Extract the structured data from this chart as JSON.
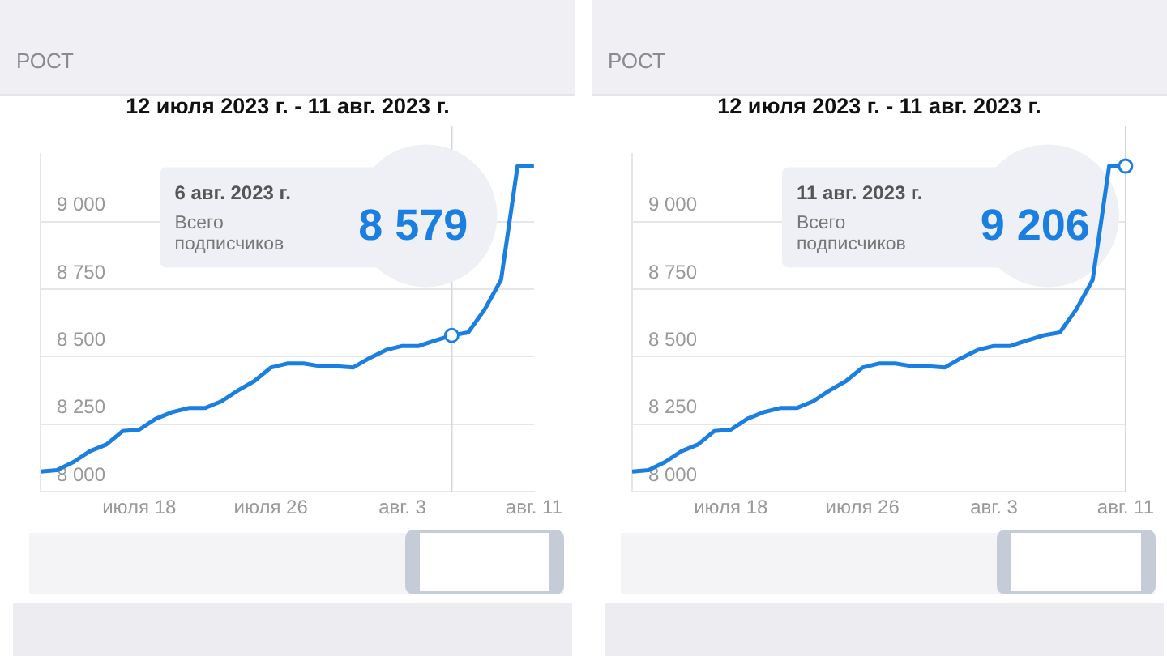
{
  "chart_data": [
    {
      "type": "line",
      "title": "РОСТ",
      "subtitle": "12 июля 2023 г. - 11 авг. 2023 г.",
      "x": [
        "2023-07-12",
        "2023-07-13",
        "2023-07-14",
        "2023-07-15",
        "2023-07-16",
        "2023-07-17",
        "2023-07-18",
        "2023-07-19",
        "2023-07-20",
        "2023-07-21",
        "2023-07-22",
        "2023-07-23",
        "2023-07-24",
        "2023-07-25",
        "2023-07-26",
        "2023-07-27",
        "2023-07-28",
        "2023-07-29",
        "2023-07-30",
        "2023-07-31",
        "2023-08-01",
        "2023-08-02",
        "2023-08-03",
        "2023-08-04",
        "2023-08-05",
        "2023-08-06",
        "2023-08-07",
        "2023-08-08",
        "2023-08-09",
        "2023-08-10",
        "2023-08-11"
      ],
      "series": [
        {
          "color": "#1a7fe0",
          "values": [
            8075,
            8080,
            8110,
            8150,
            8175,
            8225,
            8230,
            8270,
            8295,
            8310,
            8310,
            8335,
            8375,
            8410,
            8460,
            8475,
            8475,
            8465,
            8465,
            8460,
            8495,
            8525,
            8540,
            8540,
            8560,
            8579,
            8590,
            8675,
            8785,
            9206,
            9206
          ]
        }
      ],
      "xlim": [
        "2023-07-12",
        "2023-08-11"
      ],
      "xticks": [
        {
          "value": "2023-07-18",
          "label": "июля 18"
        },
        {
          "value": "2023-07-26",
          "label": "июля 26"
        },
        {
          "value": "2023-08-03",
          "label": "авг. 3"
        },
        {
          "value": "2023-08-11",
          "label": "авг. 11"
        }
      ],
      "ylim": [
        8000,
        9250
      ],
      "yticks": [
        {
          "value": 8000,
          "label": "8 000"
        },
        {
          "value": 8250,
          "label": "8 250"
        },
        {
          "value": 8500,
          "label": "8 500"
        },
        {
          "value": 8750,
          "label": "8 750"
        },
        {
          "value": 9000,
          "label": "9 000"
        }
      ],
      "grid": "y",
      "legend": false,
      "marker": "none",
      "line_style": "solid",
      "ref_lines": [
        {
          "axis": "x",
          "value": "2023-08-06",
          "color": "#d6d6dc"
        }
      ],
      "annotations": [
        "6 авг. 2023 г.",
        "Всего подписчиков",
        "8 579"
      ]
    },
    {
      "type": "line",
      "title": "РОСТ",
      "subtitle": "12 июля 2023 г. - 11 авг. 2023 г.",
      "x": [
        "2023-07-12",
        "2023-07-13",
        "2023-07-14",
        "2023-07-15",
        "2023-07-16",
        "2023-07-17",
        "2023-07-18",
        "2023-07-19",
        "2023-07-20",
        "2023-07-21",
        "2023-07-22",
        "2023-07-23",
        "2023-07-24",
        "2023-07-25",
        "2023-07-26",
        "2023-07-27",
        "2023-07-28",
        "2023-07-29",
        "2023-07-30",
        "2023-07-31",
        "2023-08-01",
        "2023-08-02",
        "2023-08-03",
        "2023-08-04",
        "2023-08-05",
        "2023-08-06",
        "2023-08-07",
        "2023-08-08",
        "2023-08-09",
        "2023-08-10",
        "2023-08-11"
      ],
      "series": [
        {
          "color": "#1a7fe0",
          "values": [
            8075,
            8080,
            8110,
            8150,
            8175,
            8225,
            8230,
            8270,
            8295,
            8310,
            8310,
            8335,
            8375,
            8410,
            8460,
            8475,
            8475,
            8465,
            8465,
            8460,
            8495,
            8525,
            8540,
            8540,
            8560,
            8579,
            8590,
            8675,
            8785,
            9206,
            9206
          ]
        }
      ],
      "xlim": [
        "2023-07-12",
        "2023-08-11"
      ],
      "xticks": [
        {
          "value": "2023-07-18",
          "label": "июля 18"
        },
        {
          "value": "2023-07-26",
          "label": "июля 26"
        },
        {
          "value": "2023-08-03",
          "label": "авг. 3"
        },
        {
          "value": "2023-08-11",
          "label": "авг. 11"
        }
      ],
      "ylim": [
        8000,
        9250
      ],
      "yticks": [
        {
          "value": 8000,
          "label": "8 000"
        },
        {
          "value": 8250,
          "label": "8 250"
        },
        {
          "value": 8500,
          "label": "8 500"
        },
        {
          "value": 8750,
          "label": "8 750"
        },
        {
          "value": 9000,
          "label": "9 000"
        }
      ],
      "grid": "y",
      "legend": false,
      "marker": "none",
      "line_style": "solid",
      "ref_lines": [
        {
          "axis": "x",
          "value": "2023-08-11",
          "color": "#d6d6dc"
        }
      ],
      "annotations": [
        "11 авг. 2023 г.",
        "Всего подписчиков",
        "9 206"
      ]
    }
  ]
}
